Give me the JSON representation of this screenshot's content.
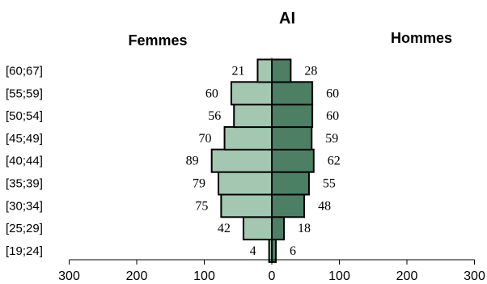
{
  "chart_data": {
    "type": "bar",
    "orientation": "horizontal",
    "layout": "population-pyramid",
    "title": "AI",
    "categories": [
      "[19;24]",
      "[25;29]",
      "[30;34]",
      "[35;39]",
      "[40;44]",
      "[45;49]",
      "[50;54]",
      "[55;59]",
      "[60;67]"
    ],
    "series": [
      {
        "name": "Femmes",
        "side": "left",
        "color": "#a3c7b1",
        "values": [
          4,
          42,
          75,
          79,
          89,
          70,
          56,
          60,
          21
        ]
      },
      {
        "name": "Hommes",
        "side": "right",
        "color": "#4d7f65",
        "values": [
          6,
          18,
          48,
          55,
          62,
          59,
          60,
          60,
          28
        ]
      }
    ],
    "xlim": [
      -300,
      300
    ],
    "xticks": [
      -300,
      -200,
      -100,
      0,
      100,
      200,
      300
    ],
    "xtick_labels": [
      "300",
      "200",
      "100",
      "0",
      "100",
      "200",
      "300"
    ],
    "grid": false,
    "legend": "none"
  }
}
